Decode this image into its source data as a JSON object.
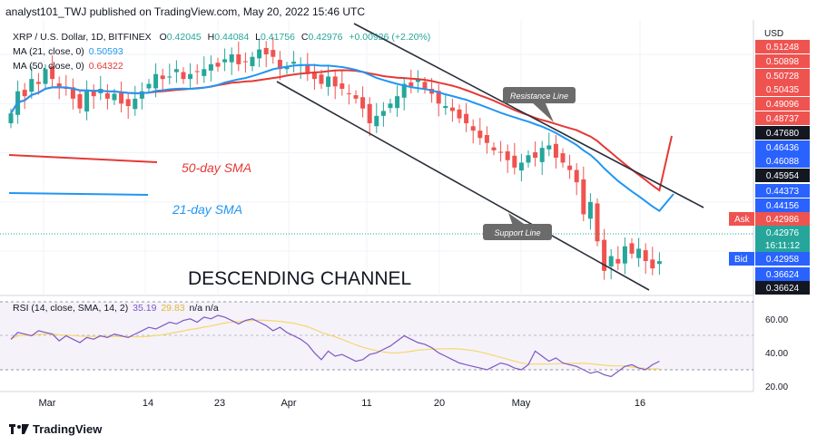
{
  "header": {
    "publisher": "analyst101_TWJ published on TradingView.com, May 20, 2022 15:46 UTC"
  },
  "legend": {
    "symbol": "XRP / U.S. Dollar, 1D, BITFINEX",
    "ohlc": {
      "o_label": "O",
      "o": "0.42045",
      "h_label": "H",
      "h": "0.44084",
      "l_label": "L",
      "l": "0.41756",
      "c_label": "C",
      "c": "0.42976",
      "chg": "+0.00926 (+2.20%)"
    },
    "ma21_label": "MA (21, close, 0)",
    "ma21_value": "0.50593",
    "ma50_label": "MA (50, close, 0)",
    "ma50_value": "0.64322",
    "rsi_label": "RSI (14, close, SMA, 14, 2)",
    "rsi_value": "35.19",
    "rsi_sma_value": "29.83",
    "rsi_na": "n/a  n/a"
  },
  "annotations": {
    "sma50": "50-day SMA",
    "sma21": "21-day SMA",
    "channel": "DESCENDING CHANNEL",
    "resistance": "Resistance Line",
    "support": "Support Line"
  },
  "price_axis": {
    "currency": "USD",
    "labels": [
      {
        "text": "0.51248",
        "style": "red"
      },
      {
        "text": "0.50898",
        "style": "red"
      },
      {
        "text": "0.50728",
        "style": "red"
      },
      {
        "text": "0.50435",
        "style": "red"
      },
      {
        "text": "0.49096",
        "style": "red"
      },
      {
        "text": "0.48737",
        "style": "red"
      },
      {
        "text": "0.47680",
        "style": "black"
      },
      {
        "text": "0.46436",
        "style": "blue"
      },
      {
        "text": "0.46088",
        "style": "blue"
      },
      {
        "text": "0.45954",
        "style": "black"
      },
      {
        "text": "0.44373",
        "style": "blue"
      },
      {
        "text": "0.44156",
        "style": "blue"
      },
      {
        "text": "0.42986",
        "style": "red"
      },
      {
        "text": "0.42976",
        "style": "teal"
      },
      {
        "text": "16:11:12",
        "style": "teal"
      },
      {
        "text": "0.42958",
        "style": "blue"
      },
      {
        "text": "0.36624",
        "style": "blue"
      },
      {
        "text": "0.36624",
        "style": "black"
      }
    ],
    "ask_label": "Ask",
    "bid_label": "Bid"
  },
  "rsi_axis": {
    "ticks": [
      "60.00",
      "40.00",
      "20.00"
    ]
  },
  "time_axis": {
    "labels": [
      "Mar",
      "14",
      "23",
      "Apr",
      "11",
      "20",
      "May",
      "16"
    ]
  },
  "footer": {
    "brand": "TradingView"
  },
  "colors": {
    "up": "#26a69a",
    "down": "#ef5350",
    "ma21": "#2196f3",
    "ma50": "#e53935",
    "rsi": "#7e57c2",
    "rsi_sma": "#f5d76e",
    "channel": "#2a2e39"
  },
  "chart_data": {
    "type": "candlestick",
    "symbol": "XRP / U.S. Dollar",
    "interval": "1D",
    "exchange": "BITFINEX",
    "ylim": [
      0.36,
      0.92
    ],
    "closes": [
      0.73,
      0.775,
      0.765,
      0.8,
      0.79,
      0.82,
      0.8,
      0.785,
      0.78,
      0.76,
      0.74,
      0.775,
      0.765,
      0.78,
      0.76,
      0.77,
      0.75,
      0.745,
      0.76,
      0.775,
      0.79,
      0.81,
      0.8,
      0.805,
      0.82,
      0.8,
      0.81,
      0.815,
      0.82,
      0.83,
      0.825,
      0.84,
      0.85,
      0.83,
      0.835,
      0.845,
      0.86,
      0.85,
      0.845,
      0.82,
      0.825,
      0.835,
      0.83,
      0.81,
      0.8,
      0.79,
      0.805,
      0.785,
      0.78,
      0.77,
      0.76,
      0.74,
      0.71,
      0.725,
      0.735,
      0.75,
      0.765,
      0.79,
      0.785,
      0.8,
      0.78,
      0.77,
      0.75,
      0.745,
      0.735,
      0.72,
      0.71,
      0.695,
      0.68,
      0.67,
      0.655,
      0.65,
      0.635,
      0.62,
      0.63,
      0.645,
      0.64,
      0.66,
      0.665,
      0.64,
      0.63,
      0.615,
      0.59,
      0.525,
      0.55,
      0.47,
      0.41,
      0.44,
      0.425,
      0.46,
      0.445,
      0.455,
      0.43,
      0.415,
      0.42976
    ],
    "rsi": [
      48,
      52,
      51,
      50,
      53,
      52,
      51,
      47,
      50,
      48,
      46,
      49,
      48,
      50,
      49,
      51,
      50,
      49,
      51,
      53,
      55,
      54,
      56,
      58,
      57,
      59,
      60,
      58,
      61,
      60,
      62,
      61,
      59,
      57,
      59,
      60,
      58,
      56,
      53,
      55,
      52,
      50,
      48,
      45,
      40,
      36,
      41,
      38,
      39,
      37,
      35,
      36,
      39,
      40,
      42,
      44,
      47,
      50,
      48,
      46,
      45,
      43,
      40,
      38,
      36,
      34,
      33,
      32,
      31,
      30,
      32,
      34,
      33,
      31,
      30,
      33,
      41,
      38,
      35,
      37,
      34,
      33,
      32,
      30,
      28,
      29,
      27,
      26,
      29,
      32,
      33,
      31,
      30,
      33,
      35
    ],
    "rsi_ticks": [
      60,
      40,
      20
    ]
  }
}
